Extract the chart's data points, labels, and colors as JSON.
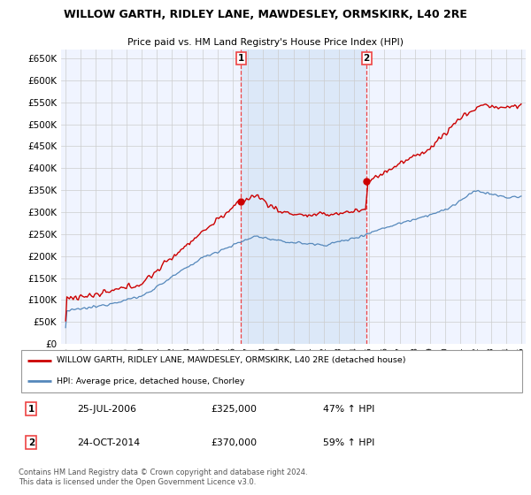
{
  "title": "WILLOW GARTH, RIDLEY LANE, MAWDESLEY, ORMSKIRK, L40 2RE",
  "subtitle": "Price paid vs. HM Land Registry's House Price Index (HPI)",
  "legend_line1": "WILLOW GARTH, RIDLEY LANE, MAWDESLEY, ORMSKIRK, L40 2RE (detached house)",
  "legend_line2": "HPI: Average price, detached house, Chorley",
  "annotation1_date": "25-JUL-2006",
  "annotation1_price": "£325,000",
  "annotation1_hpi": "47% ↑ HPI",
  "annotation2_date": "24-OCT-2014",
  "annotation2_price": "£370,000",
  "annotation2_hpi": "59% ↑ HPI",
  "footnote": "Contains HM Land Registry data © Crown copyright and database right 2024.\nThis data is licensed under the Open Government Licence v3.0.",
  "red_color": "#cc0000",
  "blue_color": "#5588bb",
  "dashed_red": "#ee4444",
  "background_plot": "#f0f4ff",
  "shaded_region": "#dce8f8",
  "grid_color": "#cccccc",
  "ylim": [
    0,
    670000
  ],
  "yticks": [
    0,
    50000,
    100000,
    150000,
    200000,
    250000,
    300000,
    350000,
    400000,
    450000,
    500000,
    550000,
    600000,
    650000
  ],
  "vline1_x": 2006.56,
  "vline2_x": 2014.81,
  "sale1_x": 2006.56,
  "sale1_y": 325000,
  "sale2_x": 2014.81,
  "sale2_y": 370000,
  "xmin": 1994.7,
  "xmax": 2025.3
}
